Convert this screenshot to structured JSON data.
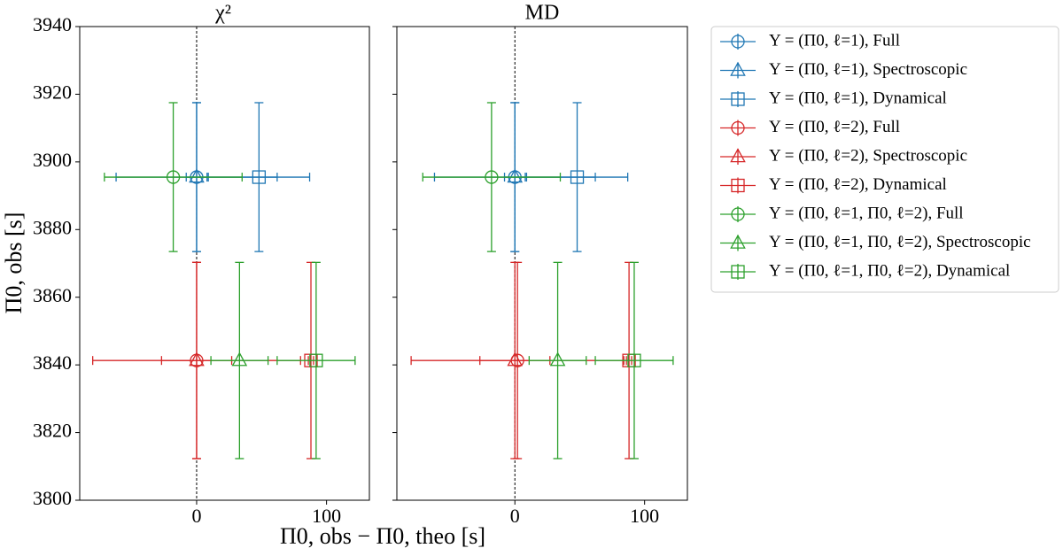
{
  "chart_data": [
    {
      "type": "errorbar",
      "title": "χ²",
      "ylabel": "Π0, obs [s]",
      "xlabel": "Π0, obs − Π0, theo [s]",
      "xlim": [
        -90,
        133
      ],
      "xticks": [
        0,
        100
      ],
      "ylim": [
        3800,
        3940
      ],
      "yticks": [
        3800,
        3820,
        3840,
        3860,
        3880,
        3900,
        3920,
        3940
      ],
      "vline": 0,
      "legend": "outside right",
      "series": [
        {
          "name": "Y = (Π0, ℓ=1),  Full",
          "color": "#1f77b4",
          "marker": "circle",
          "x": [
            0
          ],
          "values": [
            3895.5
          ],
          "xerr": [
            62
          ],
          "yerr": [
            22
          ]
        },
        {
          "name": "Y = (Π0, ℓ=1),  Spectroscopic",
          "color": "#1f77b4",
          "marker": "triangle",
          "x": [
            0
          ],
          "values": [
            3895.5
          ],
          "xerr": [
            8
          ],
          "yerr": [
            22
          ]
        },
        {
          "name": "Y = (Π0, ℓ=1),  Dynamical",
          "color": "#1f77b4",
          "marker": "square",
          "x": [
            48
          ],
          "values": [
            3895.5
          ],
          "xerr": [
            39
          ],
          "yerr": [
            22
          ]
        },
        {
          "name": "Y = (Π0, ℓ=2),  Full",
          "color": "#d62728",
          "marker": "circle",
          "x": [
            0
          ],
          "values": [
            3841.3
          ],
          "xerr": [
            80
          ],
          "yerr": [
            29
          ]
        },
        {
          "name": "Y = (Π0, ℓ=2),  Spectroscopic",
          "color": "#d62728",
          "marker": "triangle",
          "x": [
            0
          ],
          "values": [
            3841.3
          ],
          "xerr": [
            27
          ],
          "yerr": [
            29
          ]
        },
        {
          "name": "Y = (Π0, ℓ=2),  Dynamical",
          "color": "#d62728",
          "marker": "square",
          "x": [
            88
          ],
          "values": [
            3841.3
          ],
          "xerr": [
            2
          ],
          "yerr": [
            29
          ]
        },
        {
          "name": "Y = (Π0, ℓ=1, Π0, ℓ=2),  Full",
          "color": "#2ca02c",
          "marker": "circle",
          "x": [
            -18
          ],
          "values": [
            3895.5
          ],
          "xerr": [
            53
          ],
          "yerr": [
            22
          ]
        },
        {
          "name": "Y = (Π0, ℓ=1, Π0, ℓ=2),  Spectroscopic",
          "color": "#2ca02c",
          "marker": "triangle",
          "x": [
            33
          ],
          "values": [
            3841.3
          ],
          "xerr": [
            22
          ],
          "yerr": [
            29
          ]
        },
        {
          "name": "Y = (Π0, ℓ=1, Π0, ℓ=2),  Dynamical",
          "color": "#2ca02c",
          "marker": "square",
          "x": [
            92
          ],
          "values": [
            3841.3
          ],
          "xerr": [
            30
          ],
          "yerr": [
            29
          ]
        }
      ]
    },
    {
      "type": "errorbar",
      "title": "MD",
      "xlim": [
        -91,
        133
      ],
      "xticks": [
        0,
        100
      ],
      "ylim": [
        3800,
        3940
      ],
      "yticks": [
        3800,
        3820,
        3840,
        3860,
        3880,
        3900,
        3920,
        3940
      ],
      "vline": 0,
      "series": [
        {
          "color": "#1f77b4",
          "marker": "circle",
          "x": [
            0
          ],
          "values": [
            3895.5
          ],
          "xerr": [
            62
          ],
          "yerr": [
            22
          ]
        },
        {
          "color": "#1f77b4",
          "marker": "triangle",
          "x": [
            0
          ],
          "values": [
            3895.5
          ],
          "xerr": [
            8
          ],
          "yerr": [
            22
          ]
        },
        {
          "color": "#1f77b4",
          "marker": "square",
          "x": [
            48
          ],
          "values": [
            3895.5
          ],
          "xerr": [
            39
          ],
          "yerr": [
            22
          ]
        },
        {
          "color": "#d62728",
          "marker": "circle",
          "x": [
            2
          ],
          "values": [
            3841.3
          ],
          "xerr": [
            82
          ],
          "yerr": [
            29
          ]
        },
        {
          "color": "#d62728",
          "marker": "triangle",
          "x": [
            0
          ],
          "values": [
            3841.3
          ],
          "xerr": [
            27
          ],
          "yerr": [
            29
          ]
        },
        {
          "color": "#d62728",
          "marker": "square",
          "x": [
            88
          ],
          "values": [
            3841.3
          ],
          "xerr": [
            2
          ],
          "yerr": [
            29
          ]
        },
        {
          "color": "#2ca02c",
          "marker": "circle",
          "x": [
            -18
          ],
          "values": [
            3895.5
          ],
          "xerr": [
            53
          ],
          "yerr": [
            22
          ]
        },
        {
          "color": "#2ca02c",
          "marker": "triangle",
          "x": [
            33
          ],
          "values": [
            3841.3
          ],
          "xerr": [
            22
          ],
          "yerr": [
            29
          ]
        },
        {
          "color": "#2ca02c",
          "marker": "square",
          "x": [
            92
          ],
          "values": [
            3841.3
          ],
          "xerr": [
            30
          ],
          "yerr": [
            29
          ]
        }
      ]
    }
  ]
}
